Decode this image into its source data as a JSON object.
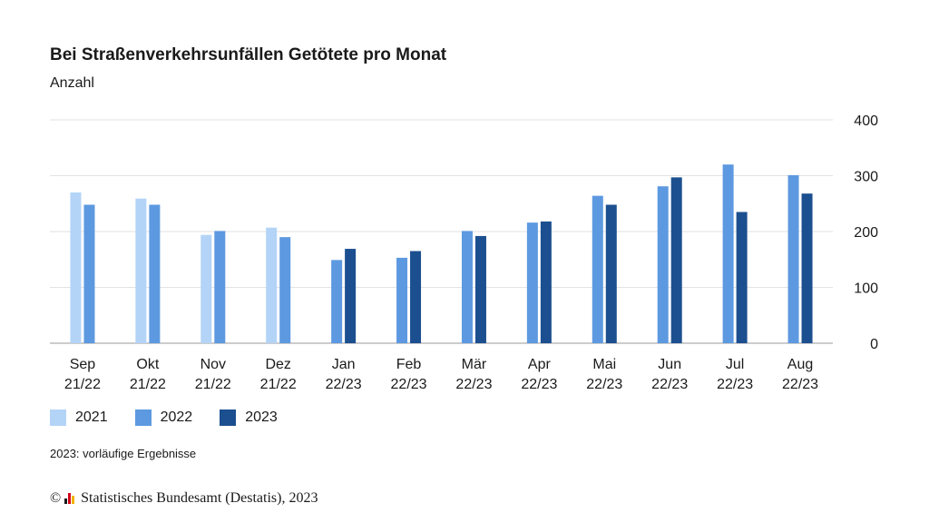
{
  "chart_data": {
    "type": "bar",
    "title": "Bei Straßenverkehrsunfällen Getötete pro Monat",
    "subtitle": "Anzahl",
    "categories": [
      [
        "Sep",
        "21/22"
      ],
      [
        "Okt",
        "21/22"
      ],
      [
        "Nov",
        "21/22"
      ],
      [
        "Dez",
        "21/22"
      ],
      [
        "Jan",
        "22/23"
      ],
      [
        "Feb",
        "22/23"
      ],
      [
        "Mär",
        "22/23"
      ],
      [
        "Apr",
        "22/23"
      ],
      [
        "Mai",
        "22/23"
      ],
      [
        "Jun",
        "22/23"
      ],
      [
        "Jul",
        "22/23"
      ],
      [
        "Aug",
        "22/23"
      ]
    ],
    "series": [
      {
        "name": "2021",
        "color": "#b3d4f7",
        "values": [
          270,
          259,
          194,
          207,
          null,
          null,
          null,
          null,
          null,
          null,
          null,
          null
        ]
      },
      {
        "name": "2022",
        "color": "#5d99e0",
        "values": [
          248,
          248,
          201,
          190,
          149,
          153,
          201,
          216,
          264,
          281,
          320,
          301
        ]
      },
      {
        "name": "2023",
        "color": "#1c4f8f",
        "values": [
          null,
          null,
          null,
          null,
          169,
          165,
          192,
          218,
          248,
          297,
          235,
          268
        ]
      }
    ],
    "ylim": [
      0,
      400
    ],
    "yticks": [
      0,
      100,
      200,
      300,
      400
    ],
    "grid": true,
    "legend": "bottom-left"
  },
  "note": "2023: vorläufige Ergebnisse",
  "source": {
    "copyright": "©",
    "text": "Statistisches Bundesamt (Destatis), 2023",
    "logo_colors": [
      "#1a1a1a",
      "#d4001a",
      "#f0b400"
    ]
  }
}
